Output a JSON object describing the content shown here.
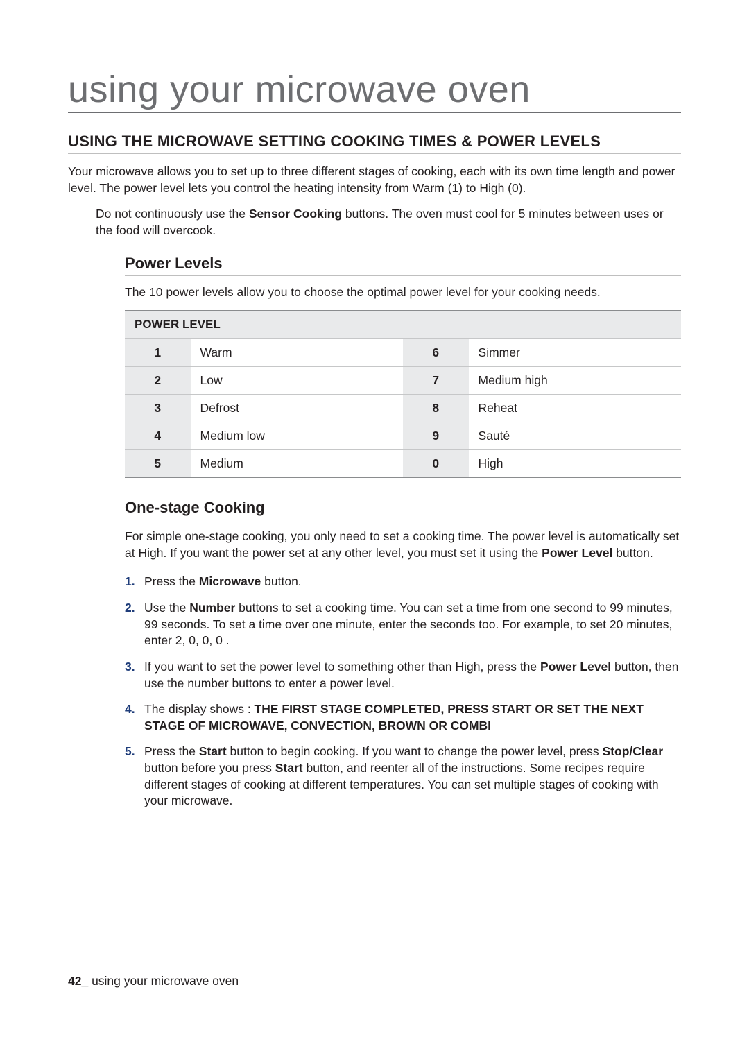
{
  "page": {
    "title": "using your microwave oven",
    "section_heading": "USING THE MICROWAVE SETTING COOKING TIMES & POWER LEVELS",
    "intro": "Your microwave allows you to set up to three different stages of cooking, each with its own time length and power level. The power level lets you control the heating intensity from Warm (1) to High (0).",
    "note_pre": "Do not continuously use the ",
    "note_bold": "Sensor Cooking",
    "note_post": " buttons. The oven must cool for 5 minutes between uses or the food will overcook."
  },
  "power_levels": {
    "heading": "Power Levels",
    "intro": "The 10 power levels allow you to choose the optimal power level for your cooking needs.",
    "table_title": "POWER LEVEL",
    "rows": [
      {
        "n1": "1",
        "l1": "Warm",
        "n2": "6",
        "l2": "Simmer"
      },
      {
        "n1": "2",
        "l1": "Low",
        "n2": "7",
        "l2": "Medium high"
      },
      {
        "n1": "3",
        "l1": "Defrost",
        "n2": "8",
        "l2": "Reheat"
      },
      {
        "n1": "4",
        "l1": "Medium low",
        "n2": "9",
        "l2": "Sauté"
      },
      {
        "n1": "5",
        "l1": "Medium",
        "n2": "0",
        "l2": "High"
      }
    ]
  },
  "one_stage": {
    "heading": "One-stage Cooking",
    "intro_pre": "For simple one-stage cooking, you only need to set a cooking time. The power level is automatically set at High. If you want the power set at any other level, you must set it using the ",
    "intro_bold": "Power Level",
    "intro_post": " button.",
    "steps": {
      "s1_pre": "Press the ",
      "s1_b": "Microwave",
      "s1_post": " button.",
      "s2_pre": "Use the ",
      "s2_b": "Number",
      "s2_post": " buttons to set a cooking time. You can set a time from one second to 99 minutes, 99 seconds. To set a time over one minute, enter the seconds too. For example, to set 20 minutes, enter 2, 0, 0, 0 .",
      "s3_pre": "If you want to set the power level to something other than High, press the ",
      "s3_b": "Power Level",
      "s3_post": " button, then use the number buttons to enter a power level.",
      "s4_pre": "The display shows : ",
      "s4_b": "THE FIRST STAGE COMPLETED, PRESS START OR SET THE NEXT STAGE OF MICROWAVE, CONVECTION, BROWN OR COMBI",
      "s5_pre": "Press the ",
      "s5_b1": "Start",
      "s5_mid1": " button to begin cooking. If you want to change the power level, press ",
      "s5_b2": "Stop/Clear",
      "s5_mid2": " button before you press ",
      "s5_b3": "Start",
      "s5_post": " button, and reenter all of the instructions. Some recipes require different stages of cooking at different temperatures. You can set multiple stages of cooking with your microwave."
    }
  },
  "footer": {
    "page_num": "42_",
    "label": " using your microwave oven"
  },
  "colors": {
    "title_gray": "#6d6e71",
    "rule_gray": "#bfbfbf",
    "table_border_dark": "#8a8c8e",
    "table_border_light": "#c6c7c8",
    "shade": "#e9eaeb",
    "list_num": "#1f3d7a",
    "text": "#231f20",
    "bg": "#ffffff"
  },
  "typography": {
    "title_fontsize": 54,
    "heading_fontsize": 22,
    "body_fontsize": 17.5
  }
}
